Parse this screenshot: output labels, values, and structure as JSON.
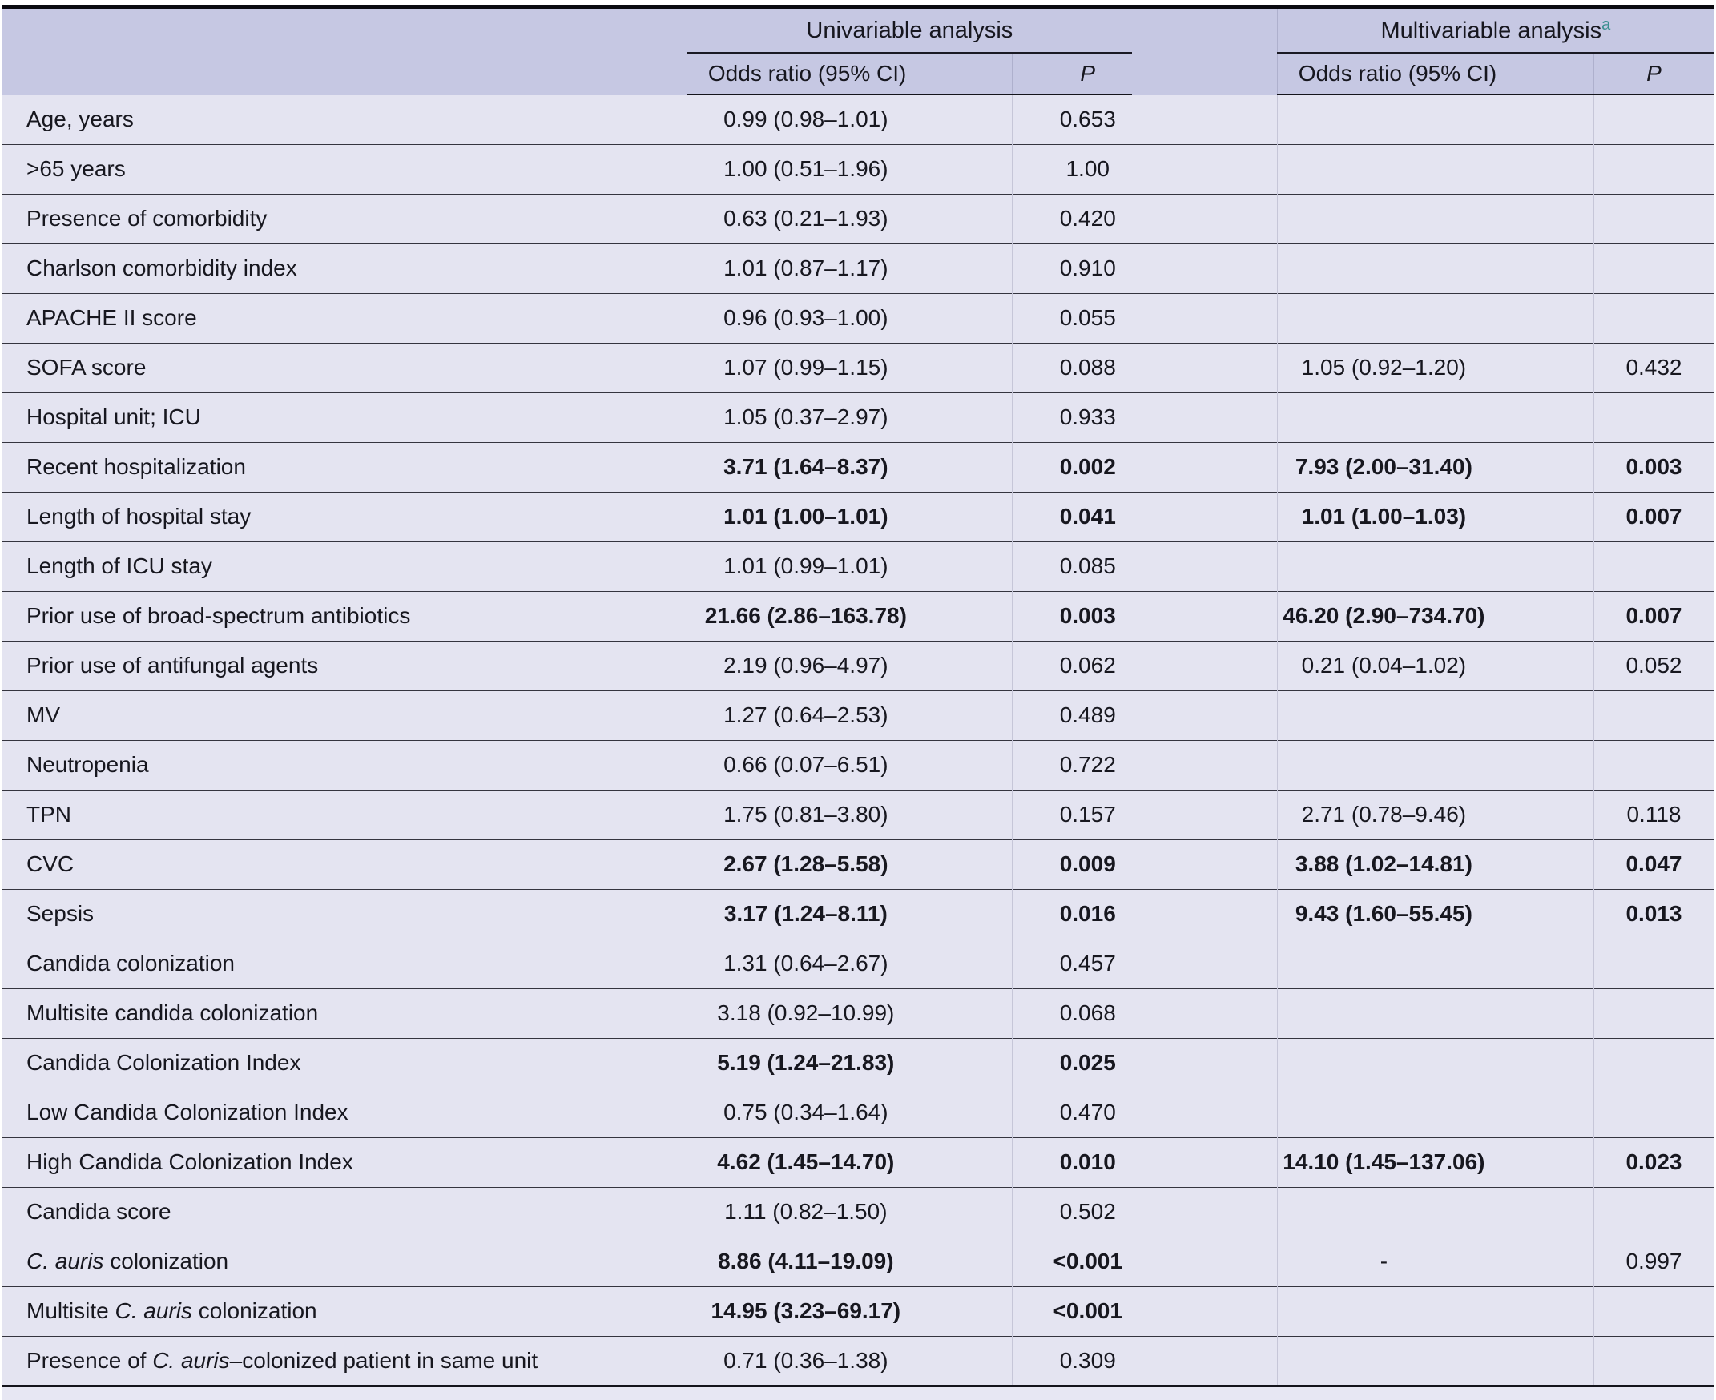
{
  "colors": {
    "header_bg": "#c6c8e3",
    "body_bg": "#e4e4f1",
    "top_border": "#0a0a10",
    "row_separator": "#34343f",
    "footnote_marker": "#3a8f8f",
    "text": "#17171f"
  },
  "table": {
    "groups": [
      {
        "label": "Univariable analysis",
        "footnote": ""
      },
      {
        "label": "Multivariable analysis",
        "footnote": "a"
      }
    ],
    "subheaders": {
      "odds_ratio": "Odds ratio (95% CI)",
      "p": "P"
    },
    "rows": [
      {
        "label": [
          {
            "t": "Age, years"
          }
        ],
        "uni_or": "0.99 (0.98–1.01)",
        "uni_p": "0.653",
        "multi_or": "",
        "multi_p": "",
        "bold_uni": false,
        "bold_multi": false
      },
      {
        "label": [
          {
            "t": ">65 years"
          }
        ],
        "uni_or": "1.00 (0.51–1.96)",
        "uni_p": "1.00",
        "multi_or": "",
        "multi_p": "",
        "bold_uni": false,
        "bold_multi": false
      },
      {
        "label": [
          {
            "t": "Presence of comorbidity"
          }
        ],
        "uni_or": "0.63 (0.21–1.93)",
        "uni_p": "0.420",
        "multi_or": "",
        "multi_p": "",
        "bold_uni": false,
        "bold_multi": false
      },
      {
        "label": [
          {
            "t": "Charlson comorbidity index"
          }
        ],
        "uni_or": "1.01 (0.87–1.17)",
        "uni_p": "0.910",
        "multi_or": "",
        "multi_p": "",
        "bold_uni": false,
        "bold_multi": false
      },
      {
        "label": [
          {
            "t": "APACHE II score"
          }
        ],
        "uni_or": "0.96 (0.93–1.00)",
        "uni_p": "0.055",
        "multi_or": "",
        "multi_p": "",
        "bold_uni": false,
        "bold_multi": false
      },
      {
        "label": [
          {
            "t": "SOFA score"
          }
        ],
        "uni_or": "1.07 (0.99–1.15)",
        "uni_p": "0.088",
        "multi_or": "1.05 (0.92–1.20)",
        "multi_p": "0.432",
        "bold_uni": false,
        "bold_multi": false
      },
      {
        "label": [
          {
            "t": "Hospital unit; ICU"
          }
        ],
        "uni_or": "1.05 (0.37–2.97)",
        "uni_p": "0.933",
        "multi_or": "",
        "multi_p": "",
        "bold_uni": false,
        "bold_multi": false
      },
      {
        "label": [
          {
            "t": "Recent hospitalization"
          }
        ],
        "uni_or": "3.71 (1.64–8.37)",
        "uni_p": "0.002",
        "multi_or": "7.93 (2.00–31.40)",
        "multi_p": "0.003",
        "bold_uni": true,
        "bold_multi": true
      },
      {
        "label": [
          {
            "t": "Length of hospital stay"
          }
        ],
        "uni_or": "1.01 (1.00–1.01)",
        "uni_p": "0.041",
        "multi_or": "1.01 (1.00–1.03)",
        "multi_p": "0.007",
        "bold_uni": true,
        "bold_multi": true
      },
      {
        "label": [
          {
            "t": "Length of ICU stay"
          }
        ],
        "uni_or": "1.01 (0.99–1.01)",
        "uni_p": "0.085",
        "multi_or": "",
        "multi_p": "",
        "bold_uni": false,
        "bold_multi": false
      },
      {
        "label": [
          {
            "t": "Prior use of broad-spectrum antibiotics"
          }
        ],
        "uni_or": "21.66 (2.86–163.78)",
        "uni_p": "0.003",
        "multi_or": "46.20 (2.90–734.70)",
        "multi_p": "0.007",
        "bold_uni": true,
        "bold_multi": true
      },
      {
        "label": [
          {
            "t": "Prior use of antifungal agents"
          }
        ],
        "uni_or": "2.19 (0.96–4.97)",
        "uni_p": "0.062",
        "multi_or": "0.21 (0.04–1.02)",
        "multi_p": "0.052",
        "bold_uni": false,
        "bold_multi": false
      },
      {
        "label": [
          {
            "t": "MV"
          }
        ],
        "uni_or": "1.27 (0.64–2.53)",
        "uni_p": "0.489",
        "multi_or": "",
        "multi_p": "",
        "bold_uni": false,
        "bold_multi": false
      },
      {
        "label": [
          {
            "t": "Neutropenia"
          }
        ],
        "uni_or": "0.66 (0.07–6.51)",
        "uni_p": "0.722",
        "multi_or": "",
        "multi_p": "",
        "bold_uni": false,
        "bold_multi": false
      },
      {
        "label": [
          {
            "t": "TPN"
          }
        ],
        "uni_or": "1.75 (0.81–3.80)",
        "uni_p": "0.157",
        "multi_or": "2.71 (0.78–9.46)",
        "multi_p": "0.118",
        "bold_uni": false,
        "bold_multi": false
      },
      {
        "label": [
          {
            "t": "CVC"
          }
        ],
        "uni_or": "2.67 (1.28–5.58)",
        "uni_p": "0.009",
        "multi_or": "3.88 (1.02–14.81)",
        "multi_p": "0.047",
        "bold_uni": true,
        "bold_multi": true
      },
      {
        "label": [
          {
            "t": "Sepsis"
          }
        ],
        "uni_or": "3.17 (1.24–8.11)",
        "uni_p": "0.016",
        "multi_or": "9.43 (1.60–55.45)",
        "multi_p": "0.013",
        "bold_uni": true,
        "bold_multi": true
      },
      {
        "label": [
          {
            "t": "Candida colonization"
          }
        ],
        "uni_or": "1.31 (0.64–2.67)",
        "uni_p": "0.457",
        "multi_or": "",
        "multi_p": "",
        "bold_uni": false,
        "bold_multi": false
      },
      {
        "label": [
          {
            "t": "Multisite candida colonization"
          }
        ],
        "uni_or": "3.18 (0.92–10.99)",
        "uni_p": "0.068",
        "multi_or": "",
        "multi_p": "",
        "bold_uni": false,
        "bold_multi": false
      },
      {
        "label": [
          {
            "t": "Candida Colonization Index"
          }
        ],
        "uni_or": "5.19 (1.24–21.83)",
        "uni_p": "0.025",
        "multi_or": "",
        "multi_p": "",
        "bold_uni": true,
        "bold_multi": false
      },
      {
        "label": [
          {
            "t": "Low Candida Colonization Index"
          }
        ],
        "uni_or": "0.75 (0.34–1.64)",
        "uni_p": "0.470",
        "multi_or": "",
        "multi_p": "",
        "bold_uni": false,
        "bold_multi": false
      },
      {
        "label": [
          {
            "t": "High Candida Colonization Index"
          }
        ],
        "uni_or": "4.62 (1.45–14.70)",
        "uni_p": "0.010",
        "multi_or": "14.10 (1.45–137.06)",
        "multi_p": "0.023",
        "bold_uni": true,
        "bold_multi": true
      },
      {
        "label": [
          {
            "t": "Candida score"
          }
        ],
        "uni_or": "1.11 (0.82–1.50)",
        "uni_p": "0.502",
        "multi_or": "",
        "multi_p": "",
        "bold_uni": false,
        "bold_multi": false
      },
      {
        "label": [
          {
            "t": "C. auris",
            "i": true
          },
          {
            "t": " colonization"
          }
        ],
        "uni_or": "8.86 (4.11–19.09)",
        "uni_p": "<0.001",
        "multi_or": "-",
        "multi_p": "0.997",
        "bold_uni": true,
        "bold_multi": false
      },
      {
        "label": [
          {
            "t": "Multisite "
          },
          {
            "t": "C. auris",
            "i": true
          },
          {
            "t": " colonization"
          }
        ],
        "uni_or": "14.95 (3.23–69.17)",
        "uni_p": "<0.001",
        "multi_or": "",
        "multi_p": "",
        "bold_uni": true,
        "bold_multi": false
      },
      {
        "label": [
          {
            "t": "Presence of "
          },
          {
            "t": "C. auris",
            "i": true
          },
          {
            "t": "–colonized patient in same unit"
          }
        ],
        "uni_or": "0.71 (0.36–1.38)",
        "uni_p": "0.309",
        "multi_or": "",
        "multi_p": "",
        "bold_uni": false,
        "bold_multi": false
      }
    ]
  }
}
